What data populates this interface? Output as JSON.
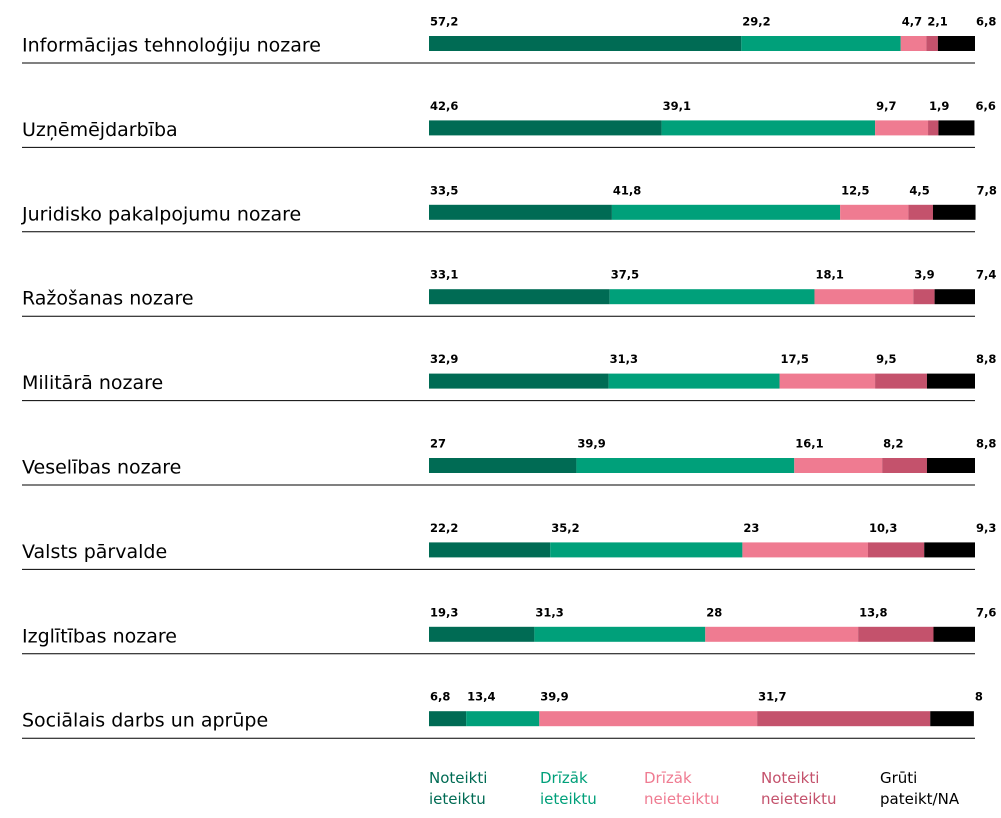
{
  "chart_data": {
    "type": "bar",
    "orientation": "horizontal",
    "stacked": true,
    "categories": [
      "Informācijas tehnoloģiju nozare",
      "Uzņēmējdarbība",
      "Juridisko pakalpojumu nozare",
      "Ražošanas nozare",
      "Militārā nozare",
      "Veselības nozare",
      "Valsts pārvalde",
      "Izglītības nozare",
      "Sociālais darbs un aprūpe"
    ],
    "xlim": [
      0,
      100
    ],
    "legend": "bottom",
    "series": [
      {
        "name": "Noteikti ieteiktu",
        "color": "#006b54",
        "values": [
          57.2,
          42.6,
          33.5,
          33.1,
          32.9,
          27,
          22.2,
          19.3,
          6.8
        ],
        "value_labels": [
          "57,2",
          "42,6",
          "33,5",
          "33,1",
          "32,9",
          "27",
          "22,2",
          "19,3",
          "6,8"
        ]
      },
      {
        "name": "Drīzāk ieteiktu",
        "color": "#00a07a",
        "values": [
          29.2,
          39.1,
          41.8,
          37.5,
          31.3,
          39.9,
          35.2,
          31.3,
          13.4
        ],
        "value_labels": [
          "29,2",
          "39,1",
          "41,8",
          "37,5",
          "31,3",
          "39,9",
          "35,2",
          "31,3",
          "13,4"
        ]
      },
      {
        "name": "Drīzāk neieteiktu",
        "color": "#ef7b91",
        "values": [
          4.7,
          9.7,
          12.5,
          18.1,
          17.5,
          16.1,
          23,
          28,
          39.9
        ],
        "value_labels": [
          "4,7",
          "9,7",
          "12,5",
          "18,1",
          "17,5",
          "16,1",
          "23",
          "28",
          "39,9"
        ]
      },
      {
        "name": "Noteikti neieteiktu",
        "color": "#c4526c",
        "values": [
          2.1,
          1.9,
          4.5,
          3.9,
          9.5,
          8.2,
          10.3,
          13.8,
          31.7
        ],
        "value_labels": [
          "2,1",
          "1,9",
          "4,5",
          "3,9",
          "9,5",
          "8,2",
          "10,3",
          "13,8",
          "31,7"
        ]
      },
      {
        "name": "Grūti pateikt/NA",
        "color": "#000000",
        "values": [
          6.8,
          6.6,
          7.8,
          7.4,
          8.8,
          8.8,
          9.3,
          7.6,
          8
        ],
        "value_labels": [
          "6,8",
          "6,6",
          "7,8",
          "7,4",
          "8,8",
          "8,8",
          "9,3",
          "7,6",
          "8"
        ]
      }
    ]
  }
}
